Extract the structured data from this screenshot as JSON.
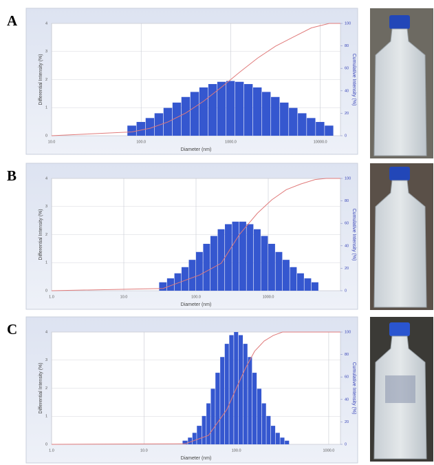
{
  "chart_data": [
    {
      "type": "bar",
      "panel": "A",
      "log_x": true,
      "grid": true,
      "xlabel": "Diameter (nm)",
      "ylabel": "Differential Intensity (%)",
      "y2label": "Cumulative Intensity (%)",
      "xlim": [
        10,
        16800
      ],
      "xticks": [
        {
          "value": 10,
          "label": "10.0"
        },
        {
          "value": 100,
          "label": "100.0"
        },
        {
          "value": 1000,
          "label": "1000.0"
        },
        {
          "value": 10000,
          "label": "10000.0"
        }
      ],
      "ylim": [
        0,
        4
      ],
      "yticks": [
        0,
        1,
        2,
        3,
        4
      ],
      "y2lim": [
        0,
        100
      ],
      "y2ticks": [
        0,
        20,
        40,
        60,
        80,
        100
      ],
      "series": [
        {
          "type": "bar",
          "color": "#3557cf",
          "x": [
            79,
            100,
            126,
            158,
            200,
            251,
            316,
            398,
            501,
            631,
            794,
            1000,
            1259,
            1585,
            1995,
            2512,
            3162,
            3981,
            5012,
            6310,
            7943,
            10000,
            12589
          ],
          "values": [
            0.36,
            0.49,
            0.63,
            0.8,
            0.99,
            1.18,
            1.38,
            1.56,
            1.72,
            1.84,
            1.92,
            1.95,
            1.92,
            1.84,
            1.72,
            1.56,
            1.38,
            1.18,
            0.99,
            0.8,
            0.63,
            0.49,
            0.36
          ]
        },
        {
          "type": "line",
          "axis": "y2",
          "color": "#e07a7a",
          "x": [
            10,
            79,
            126,
            200,
            316,
            501,
            794,
            1000,
            1259,
            1995,
            3162,
            5012,
            7943,
            12589,
            16800
          ],
          "values": [
            0,
            3.4,
            6.7,
            12.3,
            20.3,
            30.9,
            43.4,
            50,
            56.6,
            69.1,
            79.7,
            87.9,
            96,
            100,
            100
          ]
        }
      ]
    },
    {
      "type": "bar",
      "panel": "B",
      "log_x": true,
      "grid": true,
      "xlabel": "Diameter (nm)",
      "ylabel": "Differential Intensity (%)",
      "y2label": "Cumulative Intensity (%)",
      "xlim": [
        1,
        10000
      ],
      "xticks": [
        {
          "value": 1,
          "label": "1.0"
        },
        {
          "value": 10,
          "label": "10.0"
        },
        {
          "value": 100,
          "label": "100.0"
        },
        {
          "value": 1000,
          "label": "1000.0"
        }
      ],
      "ylim": [
        0,
        4
      ],
      "yticks": [
        0,
        1,
        2,
        3,
        4
      ],
      "y2lim": [
        0,
        100
      ],
      "y2ticks": [
        0,
        20,
        40,
        60,
        80,
        100
      ],
      "series": [
        {
          "type": "bar",
          "color": "#3557cf",
          "x": [
            35,
            45,
            56,
            71,
            89,
            112,
            141,
            178,
            224,
            282,
            355,
            447,
            562,
            708,
            891,
            1122,
            1413,
            1778,
            2239,
            2818,
            3548,
            4467
          ],
          "values": [
            0.3,
            0.44,
            0.62,
            0.84,
            1.1,
            1.38,
            1.67,
            1.95,
            2.19,
            2.37,
            2.46,
            2.46,
            2.37,
            2.19,
            1.95,
            1.67,
            1.38,
            1.1,
            0.84,
            0.62,
            0.44,
            0.3
          ]
        },
        {
          "type": "line",
          "axis": "y2",
          "color": "#e07a7a",
          "x": [
            1,
            35,
            112,
            224,
            398,
            708,
            1122,
            1778,
            2818,
            4467,
            6310,
            10000
          ],
          "values": [
            0,
            2,
            14,
            24.5,
            50,
            69,
            81,
            90,
            95,
            99,
            100,
            100
          ]
        }
      ]
    },
    {
      "type": "bar",
      "panel": "C",
      "log_x": true,
      "grid": true,
      "xlabel": "Diameter (nm)",
      "ylabel": "Differential Intensity (%)",
      "y2label": "Cumulative Intensity (%)",
      "xlim": [
        1,
        1340
      ],
      "xticks": [
        {
          "value": 1,
          "label": "1.0"
        },
        {
          "value": 10,
          "label": "10.0"
        },
        {
          "value": 100,
          "label": "100.0"
        },
        {
          "value": 1000,
          "label": "1000.0"
        }
      ],
      "ylim": [
        0,
        4
      ],
      "yticks": [
        0,
        1,
        2,
        3,
        4
      ],
      "y2lim": [
        0,
        100
      ],
      "y2ticks": [
        0,
        20,
        40,
        60,
        80,
        100
      ],
      "series": [
        {
          "type": "bar",
          "color": "#3557cf",
          "x": [
            28,
            32,
            35,
            40,
            45,
            50,
            56,
            63,
            71,
            79,
            89,
            100,
            112,
            126,
            141,
            158,
            178,
            200,
            224,
            251,
            282,
            316,
            355
          ],
          "values": [
            0.13,
            0.24,
            0.41,
            0.66,
            1.01,
            1.46,
            1.98,
            2.55,
            3.11,
            3.58,
            3.89,
            4,
            3.89,
            3.58,
            3.11,
            2.55,
            1.98,
            1.46,
            1.01,
            0.66,
            0.41,
            0.24,
            0.13
          ]
        },
        {
          "type": "line",
          "axis": "y2",
          "color": "#e07a7a",
          "x": [
            1,
            28,
            50,
            79,
            100,
            126,
            158,
            200,
            251,
            316,
            1340
          ],
          "values": [
            0,
            0.5,
            8,
            31,
            50,
            68,
            83,
            92,
            97,
            100,
            100
          ]
        }
      ]
    }
  ]
}
